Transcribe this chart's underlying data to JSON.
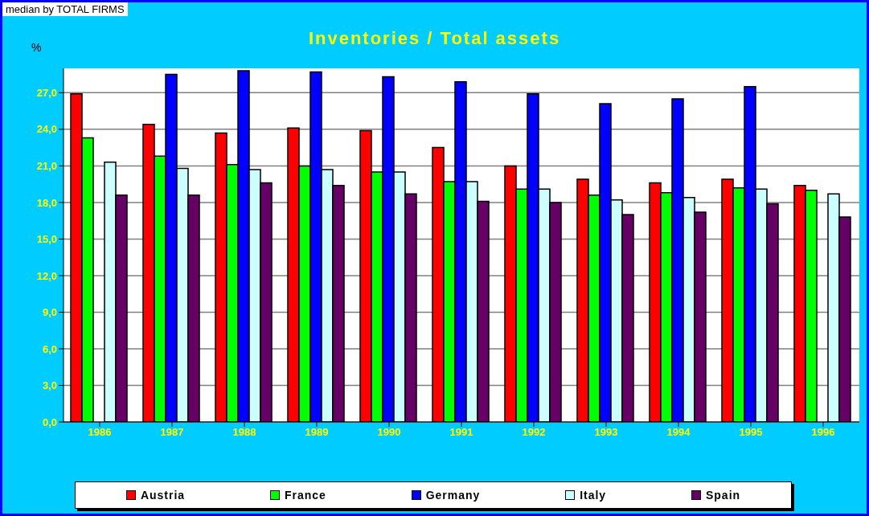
{
  "chart_data": {
    "type": "bar",
    "title": "Inventories / Total assets",
    "ylabel": "%",
    "annotations": [
      "median by TOTAL FIRMS"
    ],
    "categories": [
      "1986",
      "1987",
      "1988",
      "1989",
      "1990",
      "1991",
      "1992",
      "1993",
      "1994",
      "1995",
      "1996"
    ],
    "series": [
      {
        "name": "Austria",
        "color": "#ff0000",
        "values": [
          26.9,
          24.4,
          23.7,
          24.1,
          23.9,
          22.5,
          21.0,
          19.9,
          19.6,
          19.9,
          19.4
        ]
      },
      {
        "name": "France",
        "color": "#00ff00",
        "values": [
          23.3,
          21.8,
          21.1,
          21.0,
          20.5,
          19.7,
          19.1,
          18.6,
          18.8,
          19.2,
          19.0
        ]
      },
      {
        "name": "Germany",
        "color": "#0000ff",
        "values": [
          null,
          28.5,
          28.8,
          28.7,
          28.3,
          27.9,
          26.9,
          26.1,
          26.5,
          27.5,
          null
        ]
      },
      {
        "name": "Italy",
        "color": "#ccffff",
        "values": [
          21.3,
          20.8,
          20.7,
          20.7,
          20.5,
          19.7,
          19.1,
          18.2,
          18.4,
          19.1,
          18.7
        ]
      },
      {
        "name": "Spain",
        "color": "#660066",
        "values": [
          18.6,
          18.6,
          19.6,
          19.4,
          18.7,
          18.1,
          18.0,
          17.0,
          17.2,
          17.9,
          16.8
        ]
      }
    ],
    "ylim": [
      0,
      29
    ],
    "yticks": [
      {
        "value": 0,
        "label": "0,0"
      },
      {
        "value": 3,
        "label": "3,0"
      },
      {
        "value": 6,
        "label": "6,0"
      },
      {
        "value": 9,
        "label": "9,0"
      },
      {
        "value": 12,
        "label": "12,0"
      },
      {
        "value": 15,
        "label": "15,0"
      },
      {
        "value": 18,
        "label": "18,0"
      },
      {
        "value": 21,
        "label": "21,0"
      },
      {
        "value": 24,
        "label": "24,0"
      },
      {
        "value": 27,
        "label": "27,0"
      }
    ],
    "grid": "y",
    "legend": "bottom"
  }
}
